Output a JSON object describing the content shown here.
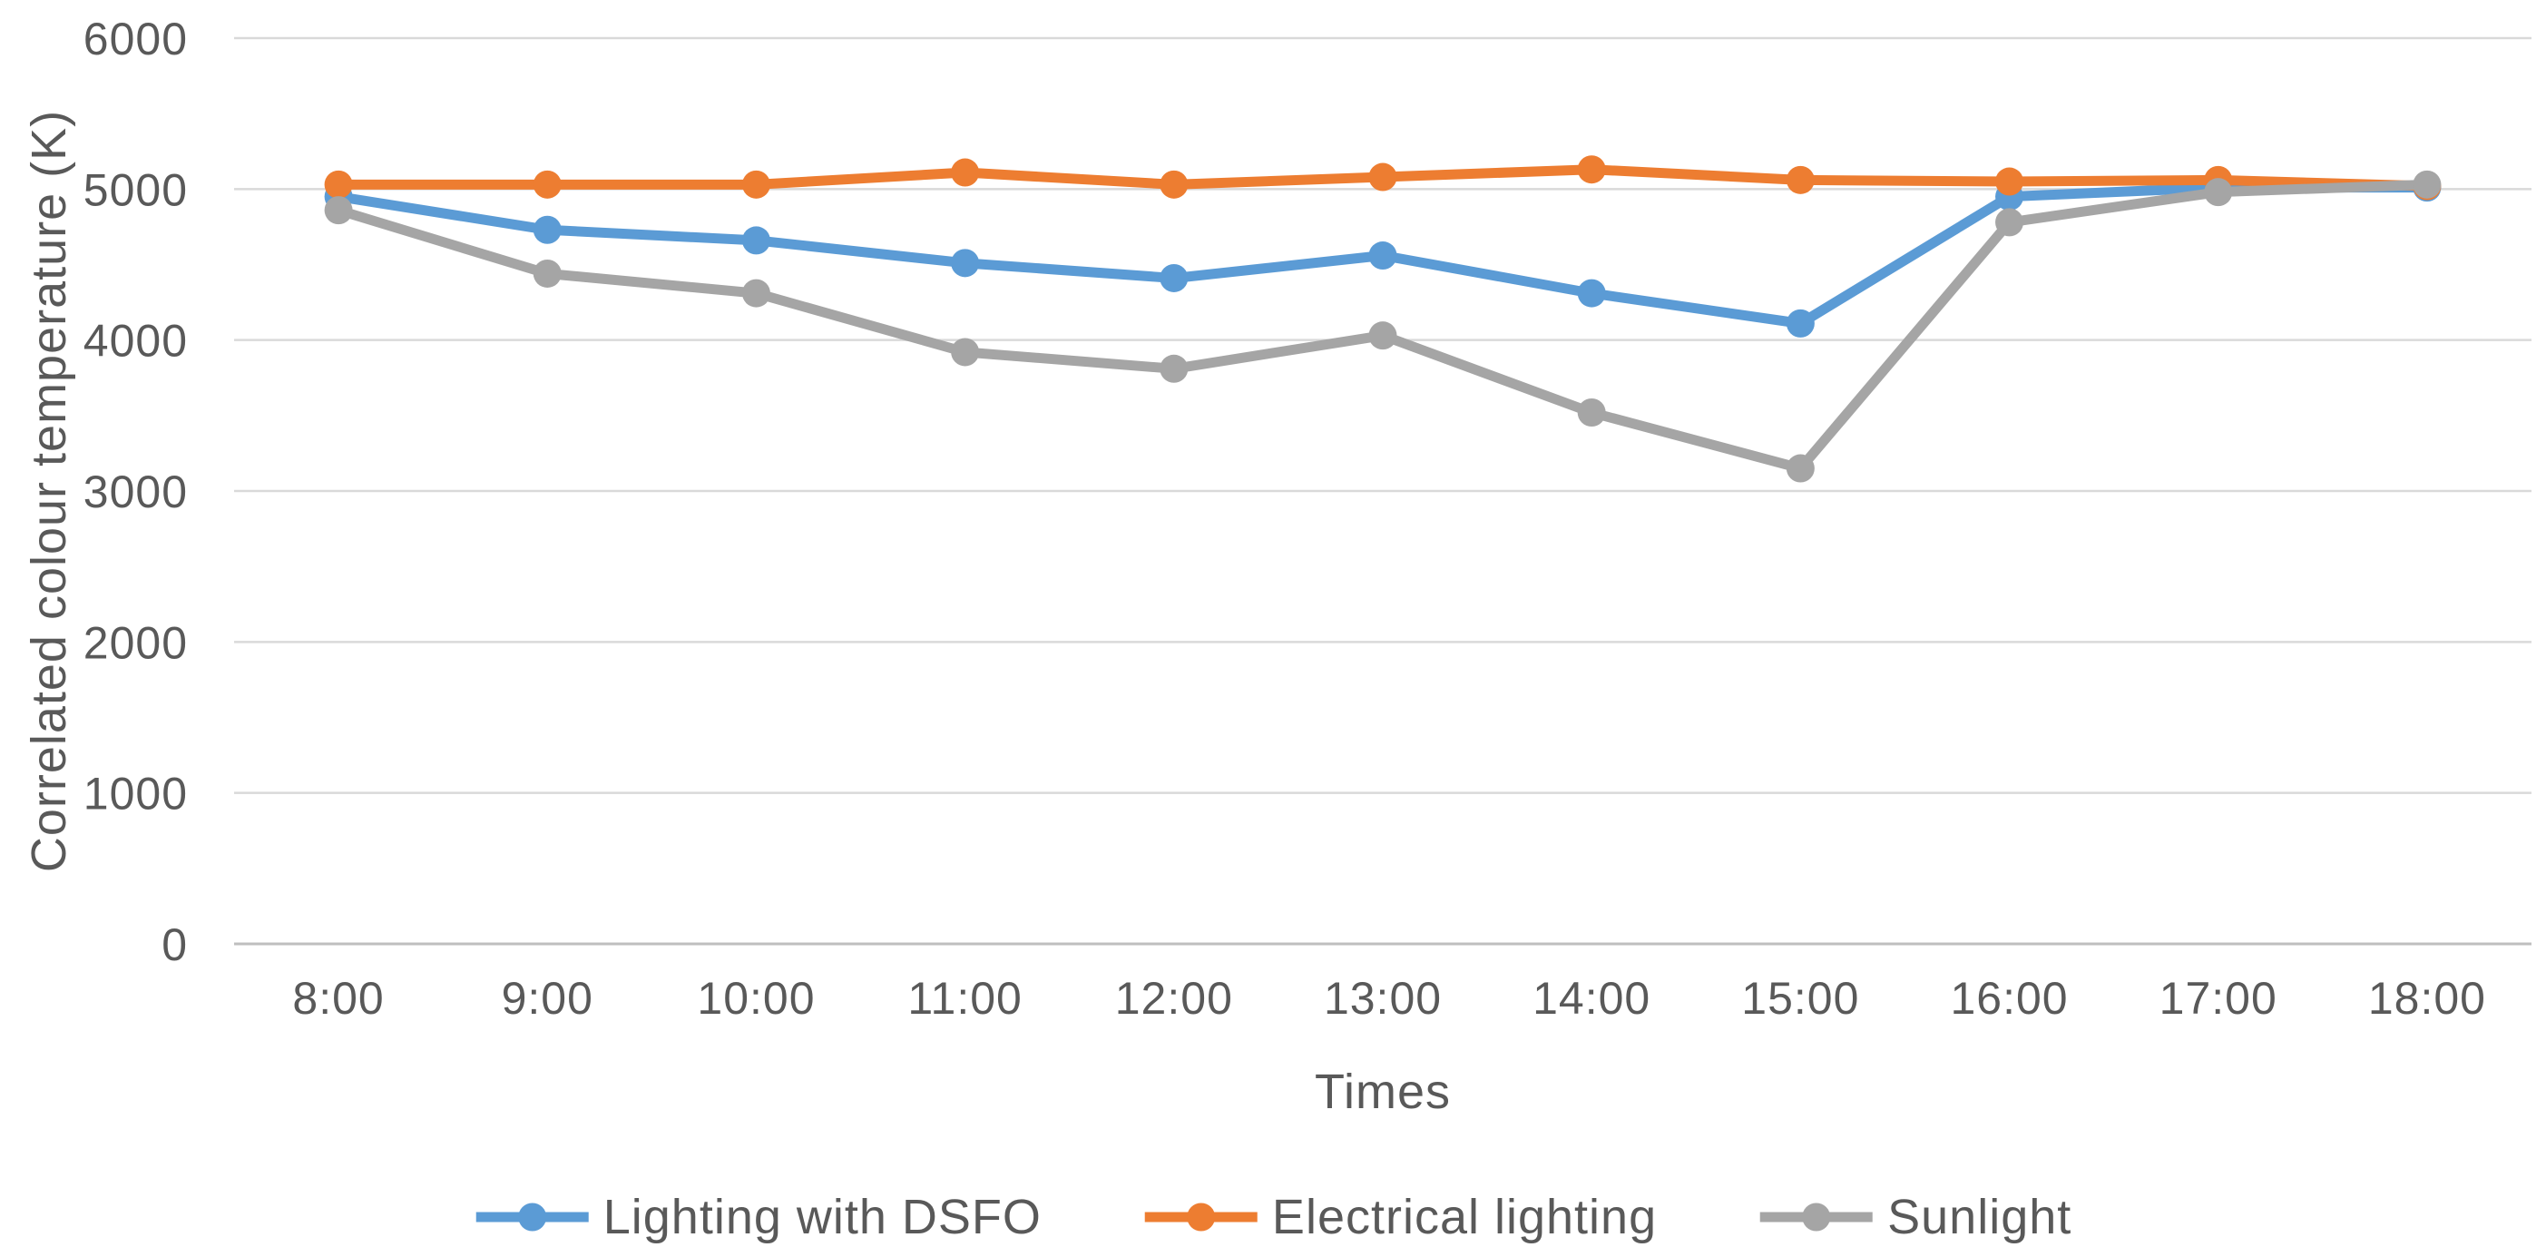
{
  "chart_data": {
    "type": "line",
    "title": "",
    "xlabel": "Times",
    "ylabel": "Correlated colour temperature (K)",
    "categories": [
      "8:00",
      "9:00",
      "10:00",
      "11:00",
      "12:00",
      "13:00",
      "14:00",
      "15:00",
      "16:00",
      "17:00",
      "18:00"
    ],
    "ylim": [
      0,
      6000
    ],
    "y_tick_step": 1000,
    "y_tick_labels": [
      "0",
      "1000",
      "2000",
      "3000",
      "4000",
      "5000",
      "6000"
    ],
    "grid": "horizontal",
    "legend_position": "bottom",
    "series": [
      {
        "name": "Lighting with DSFO",
        "color": "#5B9BD5",
        "values": [
          4950,
          4730,
          4660,
          4510,
          4410,
          4560,
          4310,
          4110,
          4950,
          5010,
          5010
        ]
      },
      {
        "name": "Electrical lighting",
        "color": "#ED7D31",
        "values": [
          5030,
          5030,
          5030,
          5110,
          5030,
          5080,
          5130,
          5060,
          5050,
          5060,
          5020
        ]
      },
      {
        "name": "Sunlight",
        "color": "#A5A5A5",
        "values": [
          4860,
          4440,
          4310,
          3920,
          3810,
          4030,
          3520,
          3150,
          4780,
          4980,
          5030
        ]
      }
    ]
  },
  "styles": {
    "text_color": "#595959",
    "gridline_color": "#D9D9D9",
    "axis_line_color": "#BFBFBF",
    "background": "#FFFFFF"
  }
}
